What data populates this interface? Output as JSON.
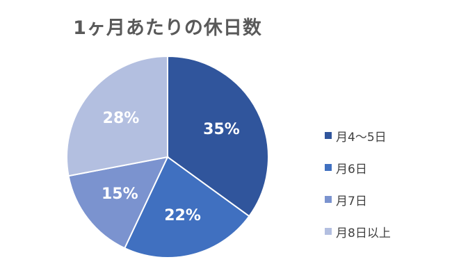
{
  "chart_data": {
    "type": "pie",
    "title": "1ヶ月あたりの休日数",
    "categories": [
      "月4〜5日",
      "月6日",
      "月7日",
      "月8日以上"
    ],
    "values": [
      35,
      22,
      15,
      28
    ],
    "labels": [
      "35%",
      "22%",
      "15%",
      "28%"
    ],
    "colors": [
      "#30559c",
      "#4070c0",
      "#7b93cf",
      "#b3bfe0"
    ],
    "legend_position": "right"
  }
}
